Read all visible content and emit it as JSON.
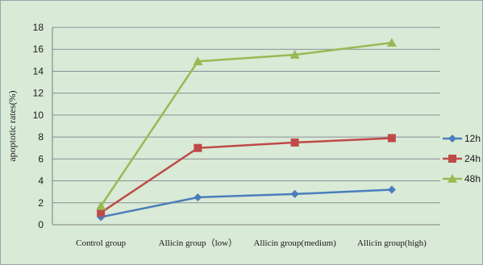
{
  "chart_data": {
    "type": "line",
    "title": "",
    "xlabel": "",
    "ylabel": "apoptotic rates(%)",
    "ylim": [
      0,
      18
    ],
    "ytick_step": 2,
    "grid": true,
    "legend_position": "right",
    "categories": [
      "Control group",
      "Allicin group（low）",
      "Allicin group(medium)",
      "Allicin group(high)"
    ],
    "series": [
      {
        "name": "12h",
        "color": "#4a7ebb",
        "marker": "diamond",
        "values": [
          0.7,
          2.5,
          2.8,
          3.2
        ]
      },
      {
        "name": "24h",
        "color": "#be4b48",
        "marker": "square",
        "values": [
          1.1,
          7.0,
          7.5,
          7.9
        ]
      },
      {
        "name": "48h",
        "color": "#98b954",
        "marker": "triangle",
        "values": [
          1.7,
          14.9,
          15.5,
          16.6
        ]
      }
    ]
  }
}
